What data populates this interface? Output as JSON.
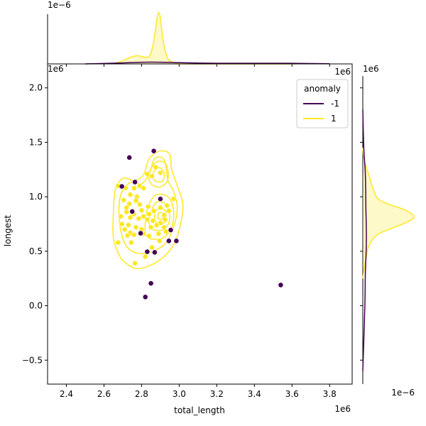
{
  "chart_data": {
    "type": "scatter",
    "x_label": "total_length",
    "y_label": "longest",
    "x_offset_text": "1e6",
    "y_offset_text": "1e6",
    "top_marginal_offset_text": "1e−6",
    "right_marginal_x_offset_text": "1e6",
    "right_marginal_y_offset_text": "1e−6",
    "x_lim": [
      2.3,
      3.92
    ],
    "y_lim": [
      -0.72,
      2.22
    ],
    "x_ticks": [
      2.4,
      2.6,
      2.8,
      3.0,
      3.2,
      3.4,
      3.6,
      3.8
    ],
    "x_tick_labels": [
      "2.4",
      "2.6",
      "2.8",
      "3.0",
      "3.2",
      "3.4",
      "3.6",
      "3.8"
    ],
    "y_ticks": [
      -0.5,
      0.0,
      0.5,
      1.0,
      1.5,
      2.0
    ],
    "y_tick_labels": [
      "−0.5",
      "0.0",
      "0.5",
      "1.0",
      "1.5",
      "2.0"
    ],
    "legend": {
      "title": "anomaly",
      "position": "top-right",
      "entries": [
        {
          "label": "-1",
          "color": "#440154"
        },
        {
          "label": "1",
          "color": "#fde725"
        }
      ]
    },
    "colors": {
      "anomaly": "#440154",
      "normal": "#fde725"
    },
    "series": [
      {
        "name": "-1",
        "color": "#440154",
        "points": [
          [
            2.735,
            1.36
          ],
          [
            2.865,
            1.42
          ],
          [
            2.765,
            1.135
          ],
          [
            2.695,
            1.095
          ],
          [
            2.75,
            0.865
          ],
          [
            2.9,
            0.98
          ],
          [
            2.795,
            0.665
          ],
          [
            2.955,
            0.695
          ],
          [
            2.83,
            0.495
          ],
          [
            2.87,
            0.49
          ],
          [
            2.945,
            0.595
          ],
          [
            2.985,
            0.595
          ],
          [
            2.85,
            0.205
          ],
          [
            2.82,
            0.08
          ],
          [
            3.54,
            0.19
          ]
        ]
      },
      {
        "name": "1",
        "color": "#fde725",
        "points": [
          [
            2.675,
            1.1
          ],
          [
            2.715,
            1.08
          ],
          [
            2.76,
            1.08
          ],
          [
            2.79,
            1.1
          ],
          [
            2.81,
            1.08
          ],
          [
            2.74,
            1.02
          ],
          [
            2.775,
            1.0
          ],
          [
            2.83,
            1.21
          ],
          [
            2.855,
            1.19
          ],
          [
            2.875,
            1.27
          ],
          [
            2.9,
            1.22
          ],
          [
            2.705,
            0.97
          ],
          [
            2.735,
            0.935
          ],
          [
            2.72,
            0.9
          ],
          [
            2.77,
            0.965
          ],
          [
            2.79,
            0.93
          ],
          [
            2.8,
            0.875
          ],
          [
            2.835,
            0.91
          ],
          [
            2.72,
            0.86
          ],
          [
            2.76,
            0.84
          ],
          [
            2.69,
            0.82
          ],
          [
            2.74,
            0.81
          ],
          [
            2.785,
            0.8
          ],
          [
            2.81,
            0.82
          ],
          [
            2.84,
            0.84
          ],
          [
            2.865,
            0.87
          ],
          [
            2.9,
            0.9
          ],
          [
            2.935,
            0.92
          ],
          [
            2.945,
            0.87
          ],
          [
            2.92,
            0.83
          ],
          [
            2.86,
            0.78
          ],
          [
            2.83,
            0.79
          ],
          [
            2.9,
            0.76
          ],
          [
            2.925,
            0.79
          ],
          [
            2.695,
            0.75
          ],
          [
            2.73,
            0.74
          ],
          [
            2.77,
            0.72
          ],
          [
            2.8,
            0.7
          ],
          [
            2.85,
            0.72
          ],
          [
            2.88,
            0.74
          ],
          [
            2.92,
            0.72
          ],
          [
            2.71,
            0.7
          ],
          [
            2.74,
            0.67
          ],
          [
            2.725,
            0.645
          ],
          [
            2.76,
            0.65
          ],
          [
            2.81,
            0.66
          ],
          [
            2.84,
            0.64
          ],
          [
            2.89,
            0.66
          ],
          [
            2.93,
            0.68
          ],
          [
            2.675,
            0.58
          ],
          [
            2.745,
            0.58
          ],
          [
            2.895,
            0.595
          ],
          [
            2.82,
            0.45
          ],
          [
            2.765,
            0.39
          ],
          [
            2.855,
            0.535
          ],
          [
            2.97,
            0.98
          ]
        ]
      }
    ],
    "kde": {
      "levels_normal": [
        [
          [
            2.71,
            0.4
          ],
          [
            2.78,
            0.34
          ],
          [
            2.88,
            0.4
          ],
          [
            2.96,
            0.53
          ],
          [
            3.0,
            0.7
          ],
          [
            3.02,
            0.92
          ],
          [
            2.99,
            1.1
          ],
          [
            2.96,
            1.25
          ],
          [
            2.95,
            1.39
          ],
          [
            2.9,
            1.42
          ],
          [
            2.84,
            1.35
          ],
          [
            2.81,
            1.2
          ],
          [
            2.76,
            1.15
          ],
          [
            2.7,
            1.17
          ],
          [
            2.66,
            1.06
          ],
          [
            2.65,
            0.85
          ],
          [
            2.65,
            0.62
          ],
          [
            2.68,
            0.47
          ]
        ],
        [
          [
            2.74,
            0.51
          ],
          [
            2.82,
            0.48
          ],
          [
            2.92,
            0.56
          ],
          [
            2.97,
            0.72
          ],
          [
            2.99,
            0.9
          ],
          [
            2.97,
            1.05
          ],
          [
            2.94,
            1.15
          ],
          [
            2.92,
            1.34
          ],
          [
            2.87,
            1.35
          ],
          [
            2.84,
            1.21
          ],
          [
            2.8,
            1.12
          ],
          [
            2.74,
            1.13
          ],
          [
            2.69,
            1.02
          ],
          [
            2.68,
            0.82
          ],
          [
            2.7,
            0.62
          ]
        ],
        [
          [
            2.85,
            1.12
          ],
          [
            2.9,
            1.09
          ],
          [
            2.94,
            1.16
          ],
          [
            2.93,
            1.3
          ],
          [
            2.88,
            1.32
          ],
          [
            2.84,
            1.22
          ]
        ],
        [
          [
            2.87,
            1.15
          ],
          [
            2.91,
            1.14
          ],
          [
            2.92,
            1.22
          ],
          [
            2.89,
            1.27
          ],
          [
            2.86,
            1.21
          ]
        ],
        [
          [
            2.83,
            0.63
          ],
          [
            2.91,
            0.62
          ],
          [
            2.96,
            0.72
          ],
          [
            2.97,
            0.88
          ],
          [
            2.94,
            1.0
          ],
          [
            2.88,
            1.02
          ],
          [
            2.84,
            0.93
          ],
          [
            2.82,
            0.78
          ]
        ],
        [
          [
            2.86,
            0.7
          ],
          [
            2.92,
            0.7
          ],
          [
            2.95,
            0.8
          ],
          [
            2.93,
            0.93
          ],
          [
            2.88,
            0.95
          ],
          [
            2.85,
            0.86
          ],
          [
            2.84,
            0.76
          ]
        ],
        [
          [
            2.88,
            0.76
          ],
          [
            2.92,
            0.76
          ],
          [
            2.93,
            0.85
          ],
          [
            2.9,
            0.9
          ],
          [
            2.87,
            0.84
          ]
        ],
        [
          [
            2.89,
            0.8
          ],
          [
            2.91,
            0.8
          ],
          [
            2.91,
            0.85
          ],
          [
            2.89,
            0.85
          ]
        ]
      ],
      "top_marginal_normal": [
        [
          2.62,
          0.0
        ],
        [
          2.66,
          0.015
        ],
        [
          2.7,
          0.06
        ],
        [
          2.74,
          0.13
        ],
        [
          2.78,
          0.16
        ],
        [
          2.82,
          0.13
        ],
        [
          2.845,
          0.17
        ],
        [
          2.865,
          0.45
        ],
        [
          2.88,
          0.85
        ],
        [
          2.89,
          1.0
        ],
        [
          2.9,
          0.9
        ],
        [
          2.915,
          0.45
        ],
        [
          2.94,
          0.1
        ],
        [
          2.98,
          0.02
        ],
        [
          3.02,
          0.0
        ],
        [
          3.3,
          0.0
        ],
        [
          3.6,
          0.0
        ]
      ],
      "top_marginal_anomaly": [
        [
          2.5,
          0.0
        ],
        [
          2.7,
          0.02
        ],
        [
          2.85,
          0.035
        ],
        [
          3.0,
          0.025
        ],
        [
          3.2,
          0.012
        ],
        [
          3.55,
          0.012
        ],
        [
          3.8,
          0.003
        ]
      ],
      "right_marginal_normal": [
        [
          0.25,
          0.0
        ],
        [
          0.35,
          0.03
        ],
        [
          0.45,
          0.07
        ],
        [
          0.55,
          0.12
        ],
        [
          0.65,
          0.28
        ],
        [
          0.72,
          0.62
        ],
        [
          0.77,
          0.88
        ],
        [
          0.82,
          1.0
        ],
        [
          0.88,
          0.82
        ],
        [
          0.93,
          0.52
        ],
        [
          0.98,
          0.3
        ],
        [
          1.05,
          0.22
        ],
        [
          1.12,
          0.17
        ],
        [
          1.2,
          0.12
        ],
        [
          1.28,
          0.06
        ],
        [
          1.36,
          0.02
        ],
        [
          1.45,
          0.0
        ]
      ],
      "right_marginal_anomaly": [
        [
          -0.6,
          0.0
        ],
        [
          0.0,
          0.04
        ],
        [
          0.3,
          0.05
        ],
        [
          0.6,
          0.07
        ],
        [
          0.9,
          0.06
        ],
        [
          1.2,
          0.05
        ],
        [
          1.45,
          0.02
        ],
        [
          1.8,
          0.0
        ]
      ]
    }
  }
}
